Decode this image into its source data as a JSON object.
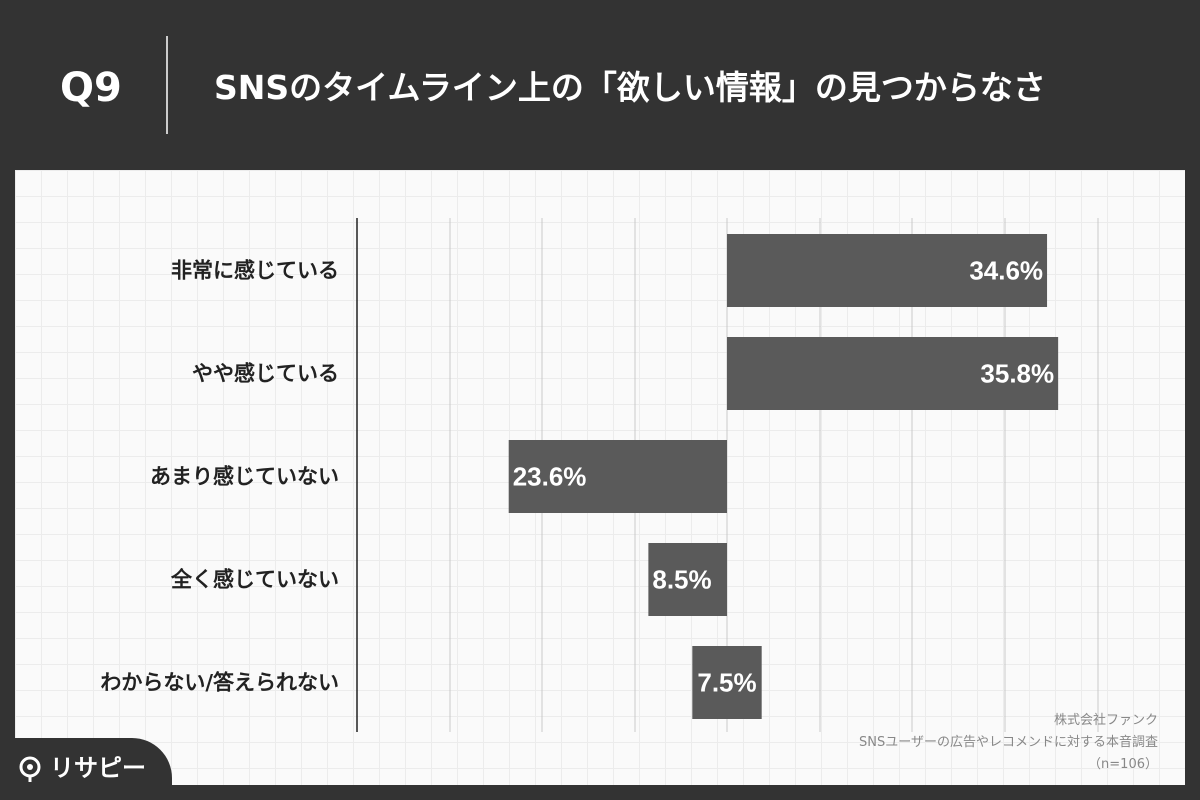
{
  "header": {
    "question_number": "Q9",
    "title": "SNSのタイムライン上の「欲しい情報」の見つからなさ"
  },
  "chart_data": {
    "type": "bar",
    "orientation": "horizontal-diverging",
    "categories": [
      "非常に感じている",
      "やや感じている",
      "あまり感じていない",
      "全く感じていない",
      "わからない/答えられない"
    ],
    "values": [
      34.6,
      35.8,
      23.6,
      8.5,
      7.5
    ],
    "value_labels": [
      "34.6%",
      "35.8%",
      "23.6%",
      "8.5%",
      "7.5%"
    ],
    "direction": [
      "right",
      "right",
      "left",
      "left",
      "center"
    ],
    "unit": "%",
    "bar_color": "#5a5a5a",
    "grid": true
  },
  "footer": {
    "company": "株式会社ファンク",
    "survey": "SNSユーザーの広告やレコメンドに対する本音調査",
    "sample": "（n=106）"
  },
  "brand": {
    "name": "リサピー",
    "icon": "pin-icon"
  }
}
